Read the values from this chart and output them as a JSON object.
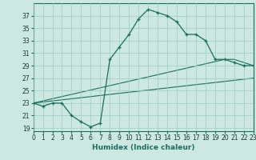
{
  "xlabel": "Humidex (Indice chaleur)",
  "background_color": "#cce8e0",
  "grid_color": "#99ccc4",
  "line_color": "#1a6e60",
  "x_values": [
    0,
    1,
    2,
    3,
    4,
    5,
    6,
    7,
    8,
    9,
    10,
    11,
    12,
    13,
    14,
    15,
    16,
    17,
    18,
    19,
    20,
    21,
    22,
    23
  ],
  "y_curve1": [
    23,
    22.5,
    23,
    23,
    21,
    20,
    19.2,
    19.8,
    30,
    32,
    34,
    36.5,
    38,
    37.5,
    37,
    36,
    34,
    34,
    33,
    30,
    30,
    29.5,
    29,
    29
  ],
  "y_line_upper": [
    23,
    23.35,
    23.7,
    24.05,
    24.4,
    24.75,
    25.1,
    25.45,
    25.8,
    26.15,
    26.5,
    26.85,
    27.2,
    27.55,
    27.9,
    28.25,
    28.6,
    28.95,
    29.3,
    29.65,
    30.0,
    30.0,
    29.5,
    29.0
  ],
  "y_line_lower": [
    23,
    23.17,
    23.35,
    23.52,
    23.7,
    23.87,
    24.04,
    24.22,
    24.39,
    24.57,
    24.74,
    24.91,
    25.09,
    25.26,
    25.43,
    25.61,
    25.78,
    25.96,
    26.13,
    26.3,
    26.48,
    26.65,
    26.83,
    27.0
  ],
  "xlim": [
    0,
    23
  ],
  "ylim": [
    18.5,
    39
  ],
  "yticks": [
    19,
    21,
    23,
    25,
    27,
    29,
    31,
    33,
    35,
    37
  ],
  "xticks": [
    0,
    1,
    2,
    3,
    4,
    5,
    6,
    7,
    8,
    9,
    10,
    11,
    12,
    13,
    14,
    15,
    16,
    17,
    18,
    19,
    20,
    21,
    22,
    23
  ],
  "tick_fontsize": 5.5,
  "xlabel_fontsize": 6.5
}
